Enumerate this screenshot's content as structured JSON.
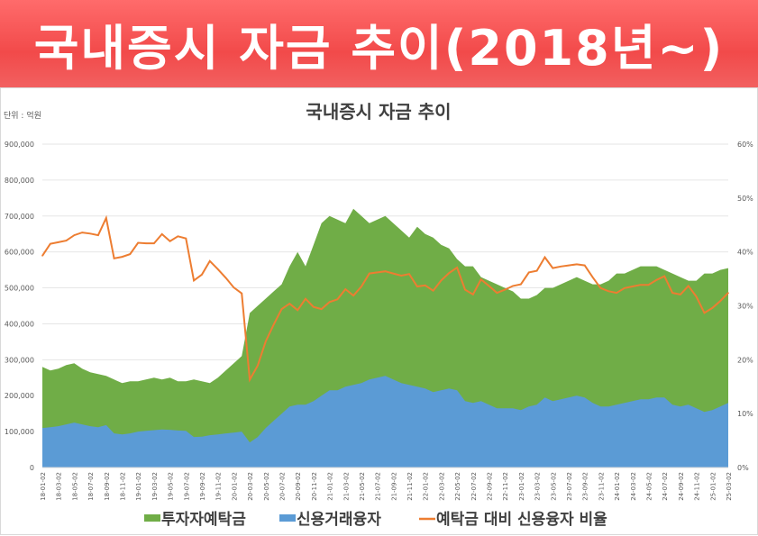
{
  "banner": {
    "title": "국내증시 자금 추이(2018년~)"
  },
  "chart_data": {
    "type": "area",
    "title": "국내증시 자금 추이",
    "unit_label": "단위 : 억원",
    "y_left": {
      "ylim": [
        0,
        900000
      ],
      "ticks": [
        "0",
        "100,000",
        "200,000",
        "300,000",
        "400,000",
        "500,000",
        "600,000",
        "700,000",
        "800,000",
        "900,000"
      ]
    },
    "y_right": {
      "ylim": [
        0,
        60
      ],
      "ticks": [
        "0%",
        "10%",
        "20%",
        "30%",
        "40%",
        "50%",
        "60%"
      ]
    },
    "grid": true,
    "legend_position": "bottom",
    "x_tick_labels": [
      "18-01-02",
      "18-03-02",
      "18-05-02",
      "18-07-02",
      "18-09-02",
      "18-11-02",
      "19-01-02",
      "19-03-02",
      "19-05-02",
      "19-07-02",
      "19-09-02",
      "19-11-02",
      "20-01-02",
      "20-03-02",
      "20-05-02",
      "20-07-02",
      "20-09-02",
      "20-11-02",
      "21-01-02",
      "21-03-02",
      "21-05-02",
      "21-07-02",
      "21-09-02",
      "21-11-02",
      "22-01-02",
      "22-03-02",
      "22-05-02",
      "22-07-02",
      "22-09-02",
      "22-11-02",
      "23-01-02",
      "23-03-02",
      "23-05-02",
      "23-07-02",
      "23-09-02",
      "23-11-02",
      "24-01-02",
      "24-03-02",
      "24-05-02",
      "24-07-02",
      "24-09-02",
      "24-11-02",
      "25-01-02",
      "25-03-02"
    ],
    "series": [
      {
        "name": "투자자예탁금",
        "color": "#70ad47",
        "axis": "left",
        "kind": "area",
        "values": [
          280000,
          270000,
          275000,
          285000,
          290000,
          275000,
          265000,
          260000,
          255000,
          245000,
          235000,
          240000,
          240000,
          245000,
          250000,
          245000,
          250000,
          240000,
          240000,
          245000,
          240000,
          235000,
          250000,
          270000,
          290000,
          310000,
          430000,
          450000,
          470000,
          490000,
          510000,
          560000,
          600000,
          560000,
          620000,
          680000,
          700000,
          690000,
          680000,
          720000,
          700000,
          680000,
          690000,
          700000,
          680000,
          660000,
          640000,
          670000,
          650000,
          640000,
          620000,
          610000,
          580000,
          560000,
          560000,
          530000,
          520000,
          510000,
          500000,
          490000,
          470000,
          470000,
          480000,
          500000,
          500000,
          510000,
          520000,
          530000,
          520000,
          510000,
          510000,
          520000,
          540000,
          540000,
          550000,
          560000,
          560000,
          560000,
          550000,
          540000,
          530000,
          520000,
          520000,
          540000,
          540000,
          550000,
          555000
        ]
      },
      {
        "name": "신용거래융자",
        "color": "#5b9bd5",
        "axis": "left",
        "kind": "area",
        "values": [
          110000,
          112000,
          115000,
          120000,
          125000,
          120000,
          115000,
          112000,
          118000,
          95000,
          92000,
          95000,
          100000,
          102000,
          104000,
          106000,
          105000,
          103000,
          102000,
          85000,
          86000,
          90000,
          92000,
          95000,
          97000,
          100000,
          70000,
          85000,
          110000,
          130000,
          150000,
          170000,
          175000,
          175000,
          185000,
          200000,
          215000,
          215000,
          225000,
          230000,
          235000,
          245000,
          250000,
          255000,
          245000,
          235000,
          230000,
          225000,
          220000,
          210000,
          215000,
          220000,
          215000,
          185000,
          180000,
          185000,
          175000,
          165000,
          165000,
          165000,
          160000,
          170000,
          175000,
          195000,
          185000,
          190000,
          195000,
          200000,
          195000,
          180000,
          170000,
          170000,
          175000,
          180000,
          185000,
          190000,
          190000,
          195000,
          195000,
          175000,
          170000,
          175000,
          165000,
          155000,
          160000,
          170000,
          180000
        ]
      },
      {
        "name": "예탁금 대비 신용융자 비율",
        "color": "#ed7d31",
        "axis": "right",
        "kind": "line",
        "values": [
          39.3,
          41.5,
          41.8,
          42.1,
          43.1,
          43.6,
          43.4,
          43.1,
          46.3,
          38.8,
          39.1,
          39.6,
          41.7,
          41.6,
          41.6,
          43.3,
          42.0,
          42.9,
          42.5,
          34.7,
          35.8,
          38.3,
          36.8,
          35.2,
          33.4,
          32.3,
          16.3,
          18.9,
          23.4,
          26.5,
          29.4,
          30.4,
          29.2,
          31.3,
          29.8,
          29.4,
          30.7,
          31.2,
          33.1,
          31.9,
          33.6,
          36.0,
          36.2,
          36.4,
          36.0,
          35.6,
          35.9,
          33.6,
          33.8,
          32.8,
          34.7,
          36.1,
          37.1,
          33.0,
          32.1,
          34.9,
          33.7,
          32.4,
          33.0,
          33.7,
          34.0,
          36.2,
          36.5,
          39.0,
          37.0,
          37.3,
          37.5,
          37.7,
          37.5,
          35.3,
          33.3,
          32.7,
          32.4,
          33.3,
          33.6,
          33.9,
          33.9,
          34.8,
          35.5,
          32.4,
          32.1,
          33.7,
          31.7,
          28.7,
          29.6,
          30.9,
          32.4
        ]
      }
    ]
  }
}
